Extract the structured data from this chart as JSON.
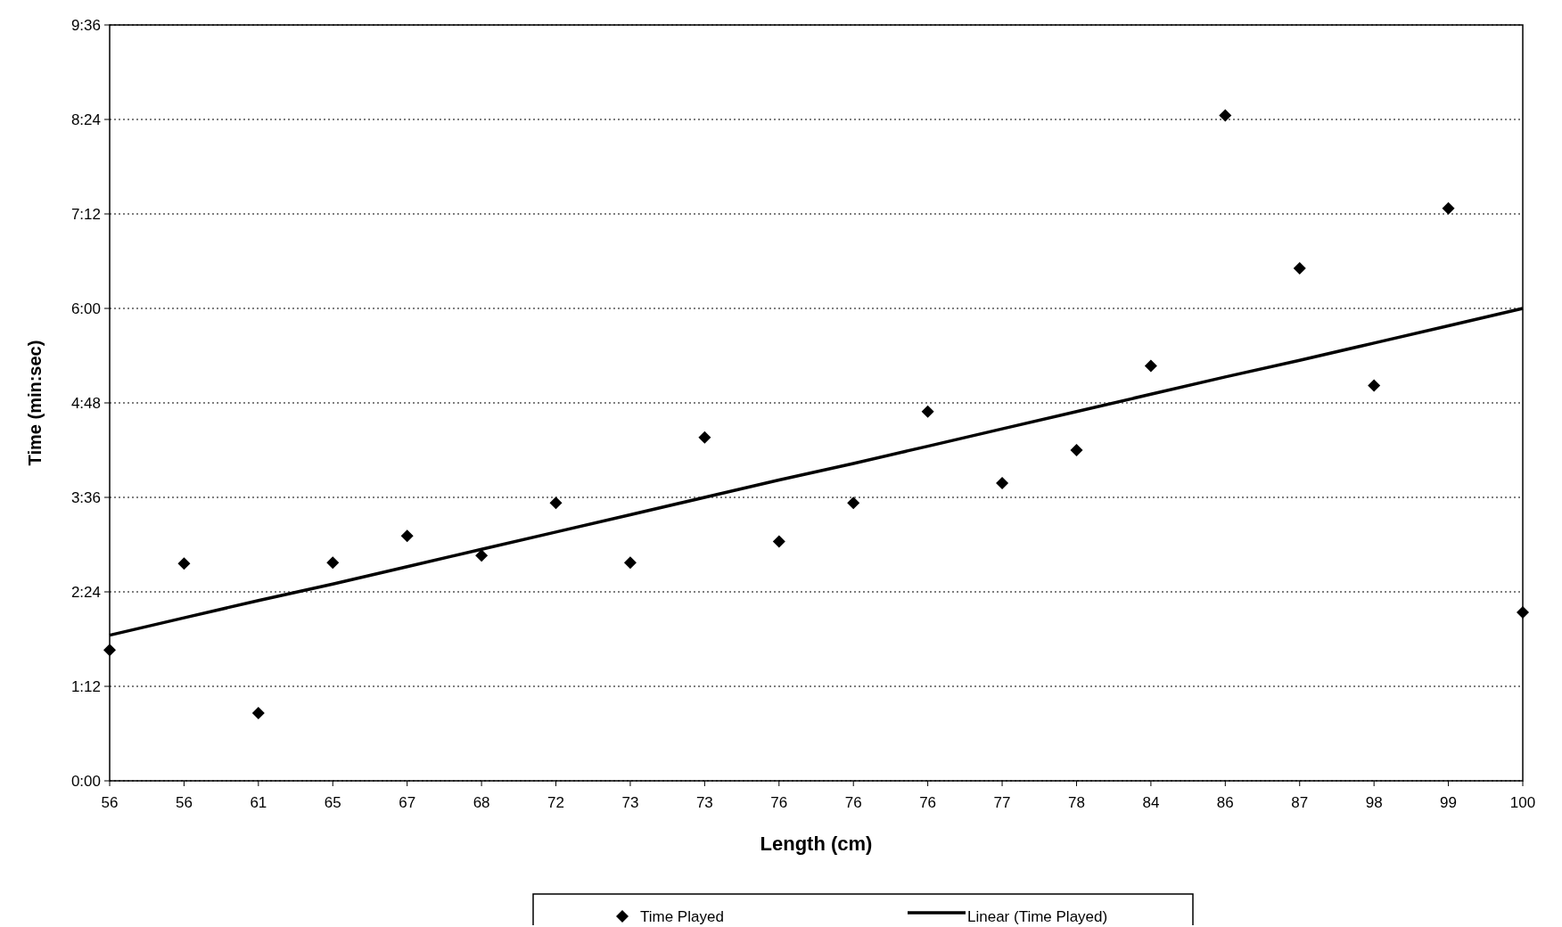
{
  "chart_data": {
    "type": "scatter",
    "xlabel": "Length (cm)",
    "ylabel": "Time (min:sec)",
    "categories": [
      "56",
      "56",
      "61",
      "65",
      "67",
      "68",
      "72",
      "73",
      "73",
      "76",
      "76",
      "76",
      "77",
      "78",
      "84",
      "86",
      "87",
      "98",
      "99",
      "100"
    ],
    "series": [
      {
        "name": "Time Played",
        "color": "#000000",
        "marker": "diamond",
        "values": [
          1.66,
          2.76,
          0.86,
          2.77,
          3.11,
          2.86,
          3.53,
          2.77,
          4.36,
          3.04,
          3.53,
          4.69,
          3.78,
          4.2,
          5.27,
          8.45,
          6.51,
          5.02,
          7.27,
          2.14
        ]
      },
      {
        "name": "Linear (Time Played)",
        "type": "line",
        "color": "#000000",
        "line_style": "solid",
        "values": [
          1.85,
          2.07,
          2.29,
          2.5,
          2.72,
          2.94,
          3.16,
          3.38,
          3.6,
          3.82,
          4.03,
          4.25,
          4.47,
          4.69,
          4.91,
          5.13,
          5.34,
          5.56,
          5.78,
          6.0
        ]
      }
    ],
    "ylim": [
      0,
      9.6
    ],
    "yticks": [
      {
        "value": 0,
        "label": "0:00"
      },
      {
        "value": 1.2,
        "label": "1:12"
      },
      {
        "value": 2.4,
        "label": "2:24"
      },
      {
        "value": 3.6,
        "label": "3:36"
      },
      {
        "value": 4.8,
        "label": "4:48"
      },
      {
        "value": 6,
        "label": "6:00"
      },
      {
        "value": 7.2,
        "label": "7:12"
      },
      {
        "value": 8.4,
        "label": "8:24"
      },
      {
        "value": 9.6,
        "label": "9:36"
      }
    ],
    "grid": "y",
    "legend": "bottom"
  }
}
